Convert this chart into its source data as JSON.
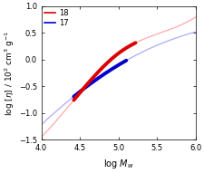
{
  "xlabel": "log $M_w$",
  "ylabel": "log [$\\eta$] / 10$^2$ cm$^3$ g$^{-1}$",
  "xlim": [
    4.0,
    6.0
  ],
  "ylim": [
    -1.5,
    1.0
  ],
  "xticks": [
    4.0,
    4.5,
    5.0,
    5.5,
    6.0
  ],
  "yticks": [
    -1.5,
    -1.0,
    -0.5,
    0.0,
    0.5,
    1.0
  ],
  "curve18_color_thin": "#ffaaaa",
  "curve17_color_thin": "#aaaaff",
  "data18_color": "#dd0000",
  "data17_color": "#0000cc",
  "legend_labels": [
    "18",
    "17"
  ],
  "background": "white",
  "tick_fontsize": 6,
  "label_fontsize": 7,
  "curve18_pts": [
    [
      4.0,
      -1.45
    ],
    [
      4.5,
      -0.62
    ],
    [
      5.0,
      0.12
    ],
    [
      5.5,
      0.48
    ],
    [
      6.0,
      0.8
    ]
  ],
  "curve17_pts": [
    [
      4.0,
      -1.22
    ],
    [
      4.5,
      -0.6
    ],
    [
      5.0,
      -0.1
    ],
    [
      5.5,
      0.27
    ],
    [
      6.0,
      0.52
    ]
  ],
  "data18_xrange": [
    4.42,
    5.22
  ],
  "data17_xrange": [
    4.42,
    5.1
  ],
  "data_lw": 2.8
}
